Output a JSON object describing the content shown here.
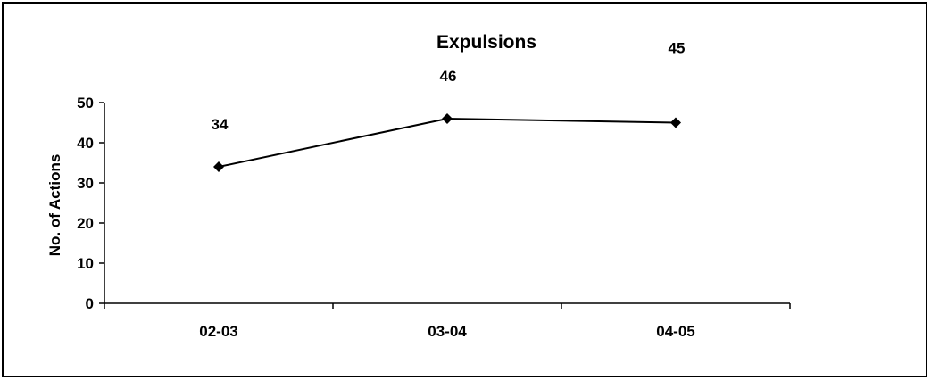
{
  "chart_data": {
    "type": "line",
    "title": "Expulsions",
    "xlabel": "",
    "ylabel": "No. of Actions",
    "categories": [
      "02-03",
      "03-04",
      "04-05"
    ],
    "series": [
      {
        "values": [
          34,
          46,
          45
        ],
        "color": "#000000",
        "marker": "diamond"
      }
    ],
    "data_labels": [
      "34",
      "46",
      "45"
    ],
    "y_ticks": [
      "0",
      "10",
      "20",
      "30",
      "40",
      "50"
    ],
    "ylim": [
      0,
      50
    ],
    "grid": false,
    "legend": "none"
  }
}
